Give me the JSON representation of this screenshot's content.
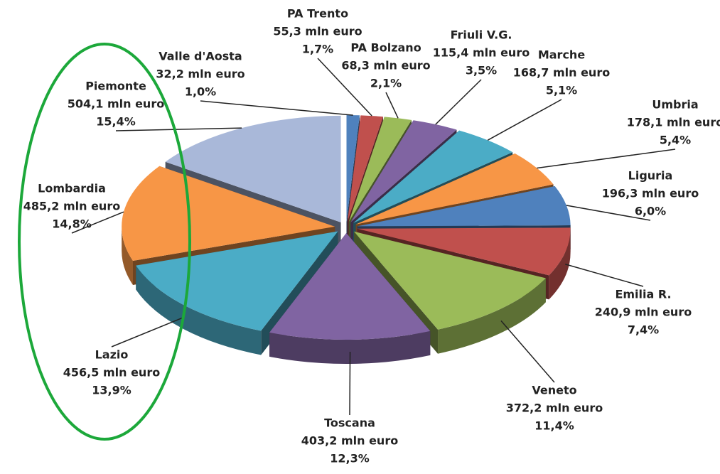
{
  "chart_data": {
    "type": "pie",
    "categories": [
      "Valle d'Aosta",
      "PA Trento",
      "PA Bolzano",
      "Friuli V.G.",
      "Marche",
      "Umbria",
      "Liguria",
      "Emilia R.",
      "Veneto",
      "Toscana",
      "Lazio",
      "Lombardia",
      "Piemonte"
    ],
    "values": [
      32.2,
      55.3,
      68.3,
      115.4,
      168.7,
      178.1,
      196.3,
      240.9,
      372.2,
      403.2,
      456.5,
      485.2,
      504.1
    ],
    "value_labels": [
      "32,2 mln euro",
      "55,3 mln euro",
      "68,3 mln euro",
      "115,4 mln euro",
      "168,7 mln euro",
      "178,1 mln euro",
      "196,3 mln euro",
      "240,9 mln euro",
      "372,2 mln euro",
      "403,2 mln euro",
      "456,5 mln euro",
      "485,2 mln euro",
      "504,1 mln euro"
    ],
    "percentages": [
      1.0,
      1.7,
      2.1,
      3.5,
      5.1,
      5.4,
      6.0,
      7.4,
      11.4,
      12.3,
      13.9,
      14.8,
      15.4
    ],
    "percentage_labels": [
      "1,0%",
      "1,7%",
      "2,1%",
      "3,5%",
      "5,1%",
      "5,4%",
      "6,0%",
      "7,4%",
      "11,4%",
      "12,3%",
      "13,9%",
      "14,8%",
      "15,4%"
    ],
    "colors": [
      "#4f81bd",
      "#c0504d",
      "#9bbb59",
      "#8064a2",
      "#4bacc6",
      "#f79646",
      "#4f81bd",
      "#c0504d",
      "#9bbb59",
      "#8064a2",
      "#4bacc6",
      "#f79646",
      "#a9b8d9"
    ]
  }
}
